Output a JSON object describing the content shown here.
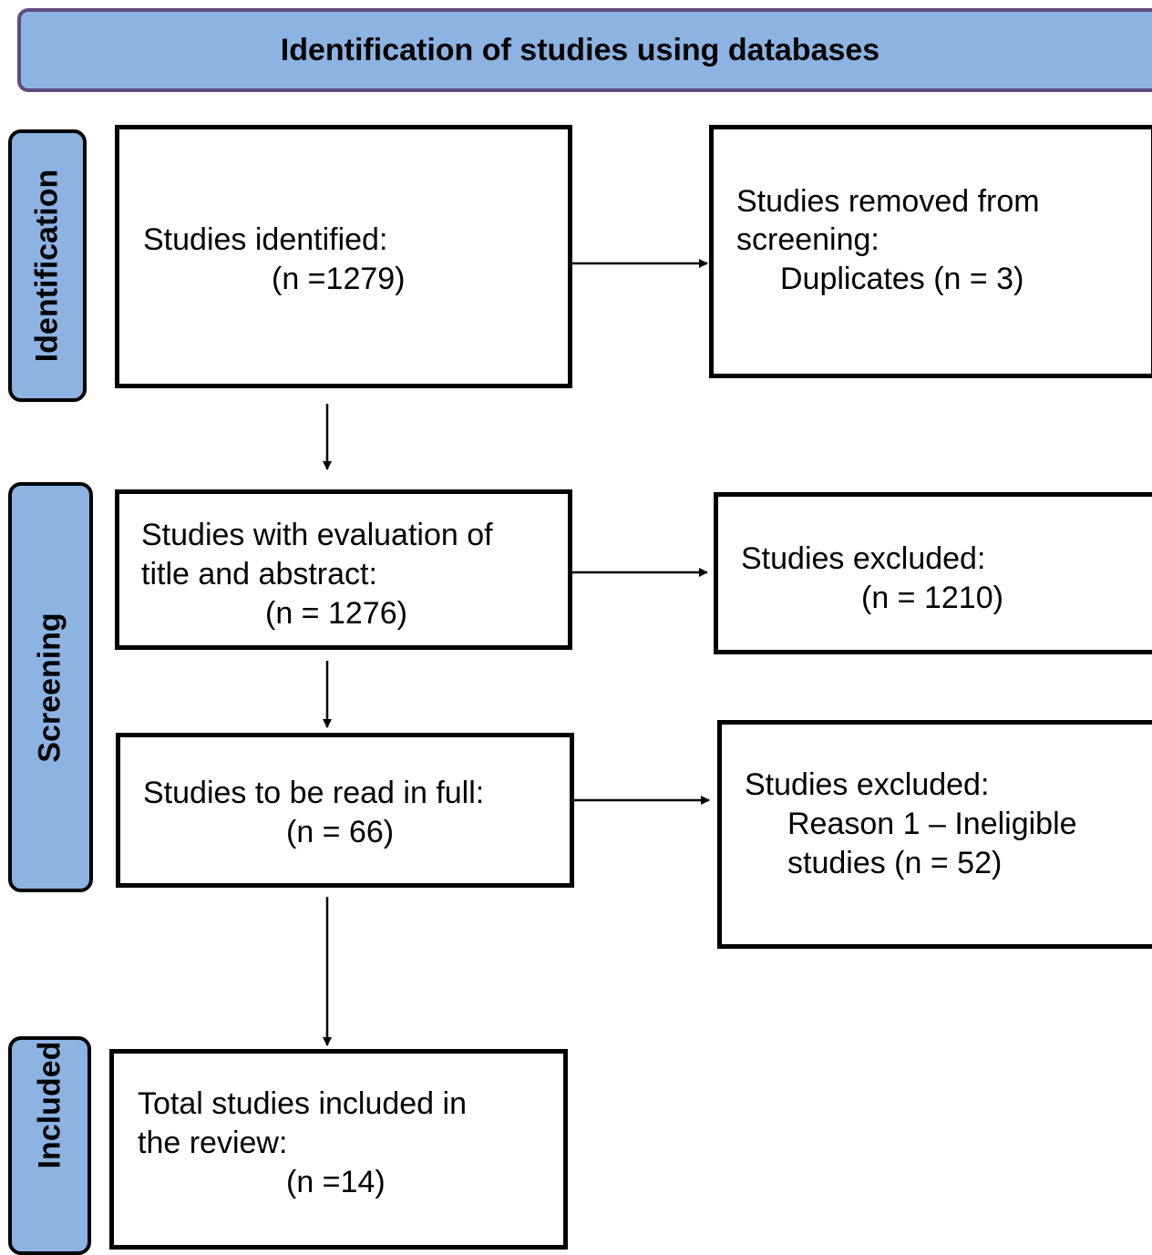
{
  "header": {
    "title": "Identification of studies using databases"
  },
  "phases": {
    "identification": "Identification",
    "screening": "Screening",
    "included": "Included"
  },
  "boxes": {
    "identified": {
      "line1": "Studies identified:",
      "line2": "(n =1279)"
    },
    "removed": {
      "line1": "Studies removed from",
      "line2": "screening:",
      "line3": "Duplicates (n = 3)"
    },
    "title_abstract": {
      "line1": "Studies with evaluation of",
      "line2": "title and abstract:",
      "line3": "(n = 1276)"
    },
    "excluded_screening": {
      "line1": "Studies excluded:",
      "line2": "(n = 1210)"
    },
    "full_text": {
      "line1": "Studies to be read in full:",
      "line2": "(n = 66)"
    },
    "excluded_full_text": {
      "line1": "Studies excluded:",
      "line2": "Reason 1 – Ineligible",
      "line3": "studies (n = 52)"
    },
    "included": {
      "line1": "Total studies included in",
      "line2": "the review:",
      "line3": "(n =14)"
    }
  }
}
